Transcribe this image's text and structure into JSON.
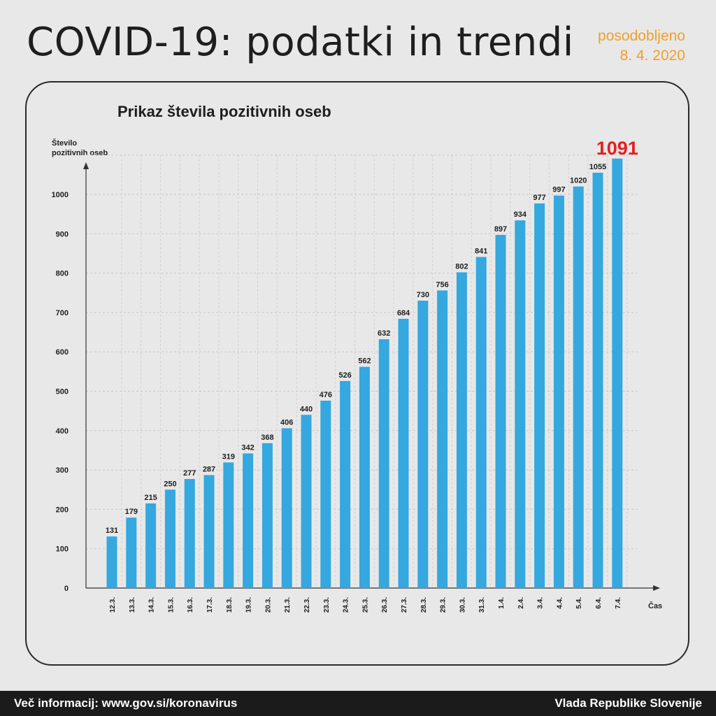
{
  "header": {
    "title": "COVID-19: podatki in trendi",
    "updated_label": "posodobljeno",
    "updated_date": "8. 4. 2020"
  },
  "footer": {
    "info": "Več informacij: www.gov.si/koronavirus",
    "org": "Vlada Republike Slovenije"
  },
  "colors": {
    "bar": "#34a8df",
    "highlight": "#e41e1e",
    "accent": "#f0a028"
  },
  "chart_data": {
    "type": "bar",
    "title": "Prikaz števila pozitivnih oseb",
    "ylabel": "Število pozitivnih oseb",
    "xlabel": "Čas",
    "ylim": [
      0,
      1100
    ],
    "yticks": [
      0,
      100,
      200,
      300,
      400,
      500,
      600,
      700,
      800,
      900,
      1000
    ],
    "grid": true,
    "categories": [
      "12.3.",
      "13.3.",
      "14.3.",
      "15.3.",
      "16.3.",
      "17.3.",
      "18.3.",
      "19.3.",
      "20.3.",
      "21.3.",
      "22.3.",
      "23.3.",
      "24.3.",
      "25.3.",
      "26.3.",
      "27.3.",
      "28.3.",
      "29.3.",
      "30.3.",
      "31.3.",
      "1.4.",
      "2.4.",
      "3.4.",
      "4.4.",
      "5.4.",
      "6.4.",
      "7.4."
    ],
    "values": [
      131,
      179,
      215,
      250,
      277,
      287,
      319,
      342,
      368,
      406,
      440,
      476,
      526,
      562,
      632,
      684,
      730,
      756,
      802,
      841,
      897,
      934,
      977,
      997,
      1020,
      1055,
      1091
    ],
    "highlight_last": true
  }
}
